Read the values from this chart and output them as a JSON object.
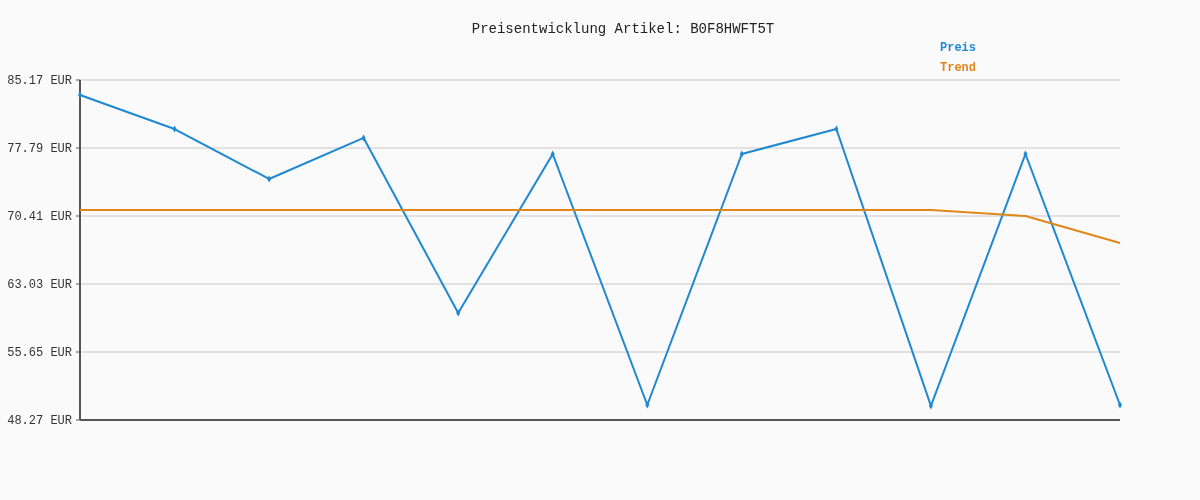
{
  "chart_data": {
    "type": "line",
    "title": "Preisentwicklung Artikel: B0F8HWFT5T",
    "categories": [
      null,
      null,
      null,
      null,
      null,
      null,
      null,
      null,
      null,
      null,
      null,
      null
    ],
    "series": [
      {
        "name": "Preis",
        "color": "#1e88d2",
        "marker": "diamond",
        "values": [
          83.54,
          79.85,
          74.43,
          78.88,
          59.88,
          77.14,
          49.9,
          77.14,
          79.85,
          49.8,
          77.14,
          49.9
        ]
      },
      {
        "name": "Trend",
        "color": "#e0861a",
        "marker": "none",
        "values": [
          71.06,
          71.06,
          71.06,
          71.06,
          71.06,
          71.06,
          71.06,
          71.06,
          71.06,
          71.06,
          70.41,
          67.48
        ]
      }
    ],
    "ylim": [
      48.27,
      85.17
    ],
    "yticks": [
      {
        "value": 48.27,
        "label": "48.27 EUR"
      },
      {
        "value": 55.65,
        "label": "55.65 EUR"
      },
      {
        "value": 63.03,
        "label": "63.03 EUR"
      },
      {
        "value": 70.41,
        "label": "70.41 EUR"
      },
      {
        "value": 77.79,
        "label": "77.79 EUR"
      },
      {
        "value": 85.17,
        "label": "85.17 EUR"
      }
    ],
    "grid": "y",
    "legend": "top right"
  }
}
